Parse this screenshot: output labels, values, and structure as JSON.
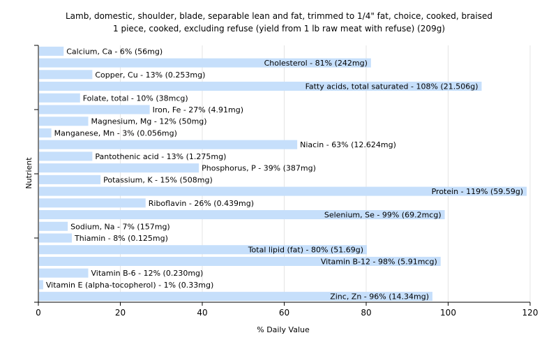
{
  "chart_data": {
    "type": "bar",
    "orientation": "horizontal",
    "title": [
      "Lamb, domestic, shoulder, blade, separable lean and fat, trimmed to 1/4\" fat, choice, cooked, braised",
      "1 piece, cooked, excluding refuse (yield from 1 lb raw meat with refuse) (209g)"
    ],
    "xlabel": "% Daily Value",
    "ylabel": "Nutrient",
    "xlim": [
      0,
      120
    ],
    "xticks": [
      "0",
      "20",
      "40",
      "60",
      "80",
      "100",
      "120"
    ],
    "grid": true,
    "bar_color": "#c6dffb",
    "categories": [
      "Calcium, Ca",
      "Cholesterol",
      "Copper, Cu",
      "Fatty acids, total saturated",
      "Folate, total",
      "Iron, Fe",
      "Magnesium, Mg",
      "Manganese, Mn",
      "Niacin",
      "Pantothenic acid",
      "Phosphorus, P",
      "Potassium, K",
      "Protein",
      "Riboflavin",
      "Selenium, Se",
      "Sodium, Na",
      "Thiamin",
      "Total lipid (fat)",
      "Vitamin B-12",
      "Vitamin B-6",
      "Vitamin E (alpha-tocopherol)",
      "Zinc, Zn"
    ],
    "values": [
      6,
      81,
      13,
      108,
      10,
      27,
      12,
      3,
      63,
      13,
      39,
      15,
      119,
      26,
      99,
      7,
      8,
      80,
      98,
      12,
      1,
      96
    ],
    "labels": [
      "Calcium, Ca - 6% (56mg)",
      "Cholesterol - 81% (242mg)",
      "Copper, Cu - 13% (0.253mg)",
      "Fatty acids, total saturated - 108% (21.506g)",
      "Folate, total - 10% (38mcg)",
      "Iron, Fe - 27% (4.91mg)",
      "Magnesium, Mg - 12% (50mg)",
      "Manganese, Mn - 3% (0.056mg)",
      "Niacin - 63% (12.624mg)",
      "Pantothenic acid - 13% (1.275mg)",
      "Phosphorus, P - 39% (387mg)",
      "Potassium, K - 15% (508mg)",
      "Protein - 119% (59.59g)",
      "Riboflavin - 26% (0.439mg)",
      "Selenium, Se - 99% (69.2mcg)",
      "Sodium, Na - 7% (157mg)",
      "Thiamin - 8% (0.125mg)",
      "Total lipid (fat) - 80% (51.69g)",
      "Vitamin B-12 - 98% (5.91mcg)",
      "Vitamin B-6 - 12% (0.230mg)",
      "Vitamin E (alpha-tocopherol) - 1% (0.33mg)",
      "Zinc, Zn - 96% (14.34mg)"
    ]
  }
}
